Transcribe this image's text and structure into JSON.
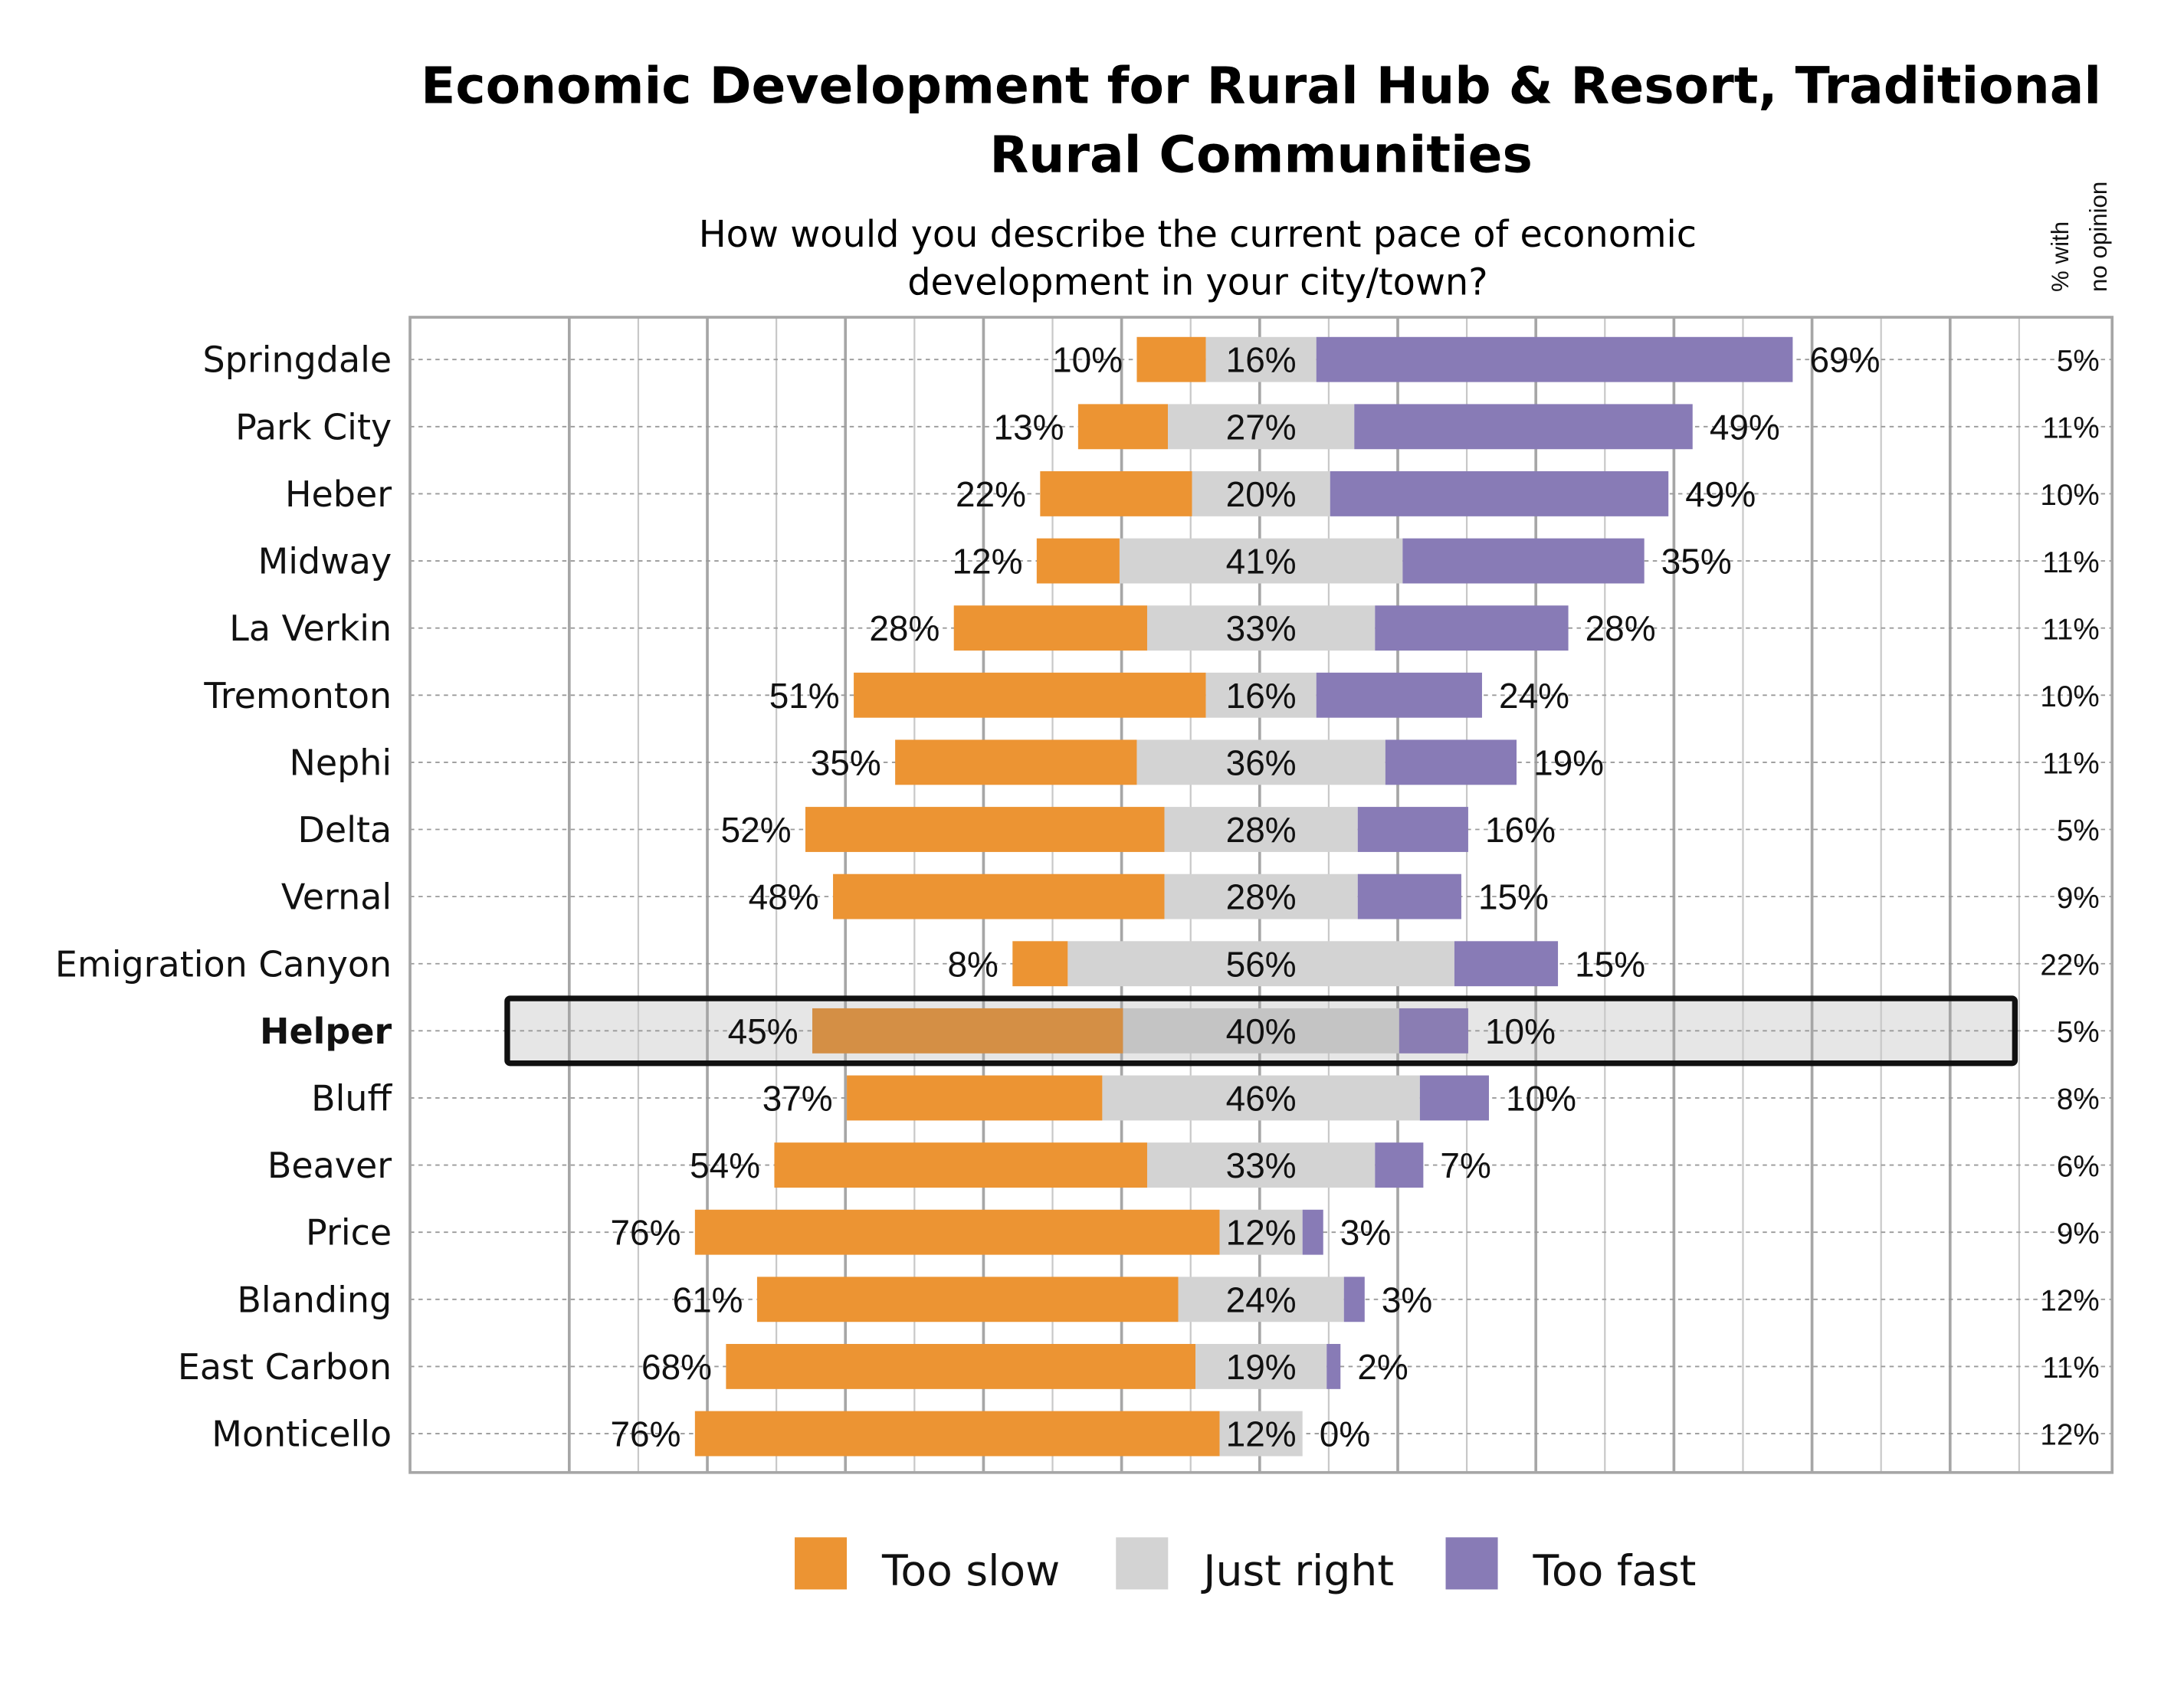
{
  "chart_data": {
    "type": "bar",
    "subtype": "diverging-stacked-horizontal",
    "title": "Economic Development for Rural Hub & Resort, Traditional Rural Communities",
    "title_lines": [
      "Economic Development for Rural Hub & Resort, Traditional",
      "Rural Communities"
    ],
    "subtitle_lines": [
      "How would you describe the current pace of economic",
      "development in your city/town?"
    ],
    "no_opinion_header_lines": [
      "% with",
      "no opinion"
    ],
    "categories": [
      "Springdale",
      "Park City",
      "Heber",
      "Midway",
      "La Verkin",
      "Tremonton",
      "Nephi",
      "Delta",
      "Vernal",
      "Emigration Canyon",
      "Helper",
      "Bluff",
      "Beaver",
      "Price",
      "Blanding",
      "East Carbon",
      "Monticello"
    ],
    "highlighted_category": "Helper",
    "series": [
      {
        "name": "Too slow",
        "color": "#ec9433",
        "values": [
          10,
          13,
          22,
          12,
          28,
          51,
          35,
          52,
          48,
          8,
          45,
          37,
          54,
          76,
          61,
          68,
          76
        ]
      },
      {
        "name": "Just right",
        "color": "#d3d3d3",
        "values": [
          16,
          27,
          20,
          41,
          33,
          16,
          36,
          28,
          28,
          56,
          40,
          46,
          33,
          12,
          24,
          19,
          12
        ]
      },
      {
        "name": "Too fast",
        "color": "#887bb6",
        "values": [
          69,
          49,
          49,
          35,
          28,
          24,
          19,
          16,
          15,
          15,
          10,
          10,
          7,
          3,
          3,
          2,
          0
        ]
      }
    ],
    "no_opinion": [
      5,
      11,
      10,
      11,
      11,
      10,
      11,
      5,
      9,
      22,
      5,
      8,
      6,
      9,
      12,
      11,
      12
    ],
    "value_suffix": "%",
    "highlight_colors": {
      "Too slow": "#d48f45",
      "Just right": "#c4c4c4",
      "Too fast": "#8a7db3",
      "background": "#e6e6e6"
    },
    "legend": {
      "position": "bottom",
      "entries": [
        "Too slow",
        "Just right",
        "Too fast"
      ]
    },
    "grid": true
  }
}
